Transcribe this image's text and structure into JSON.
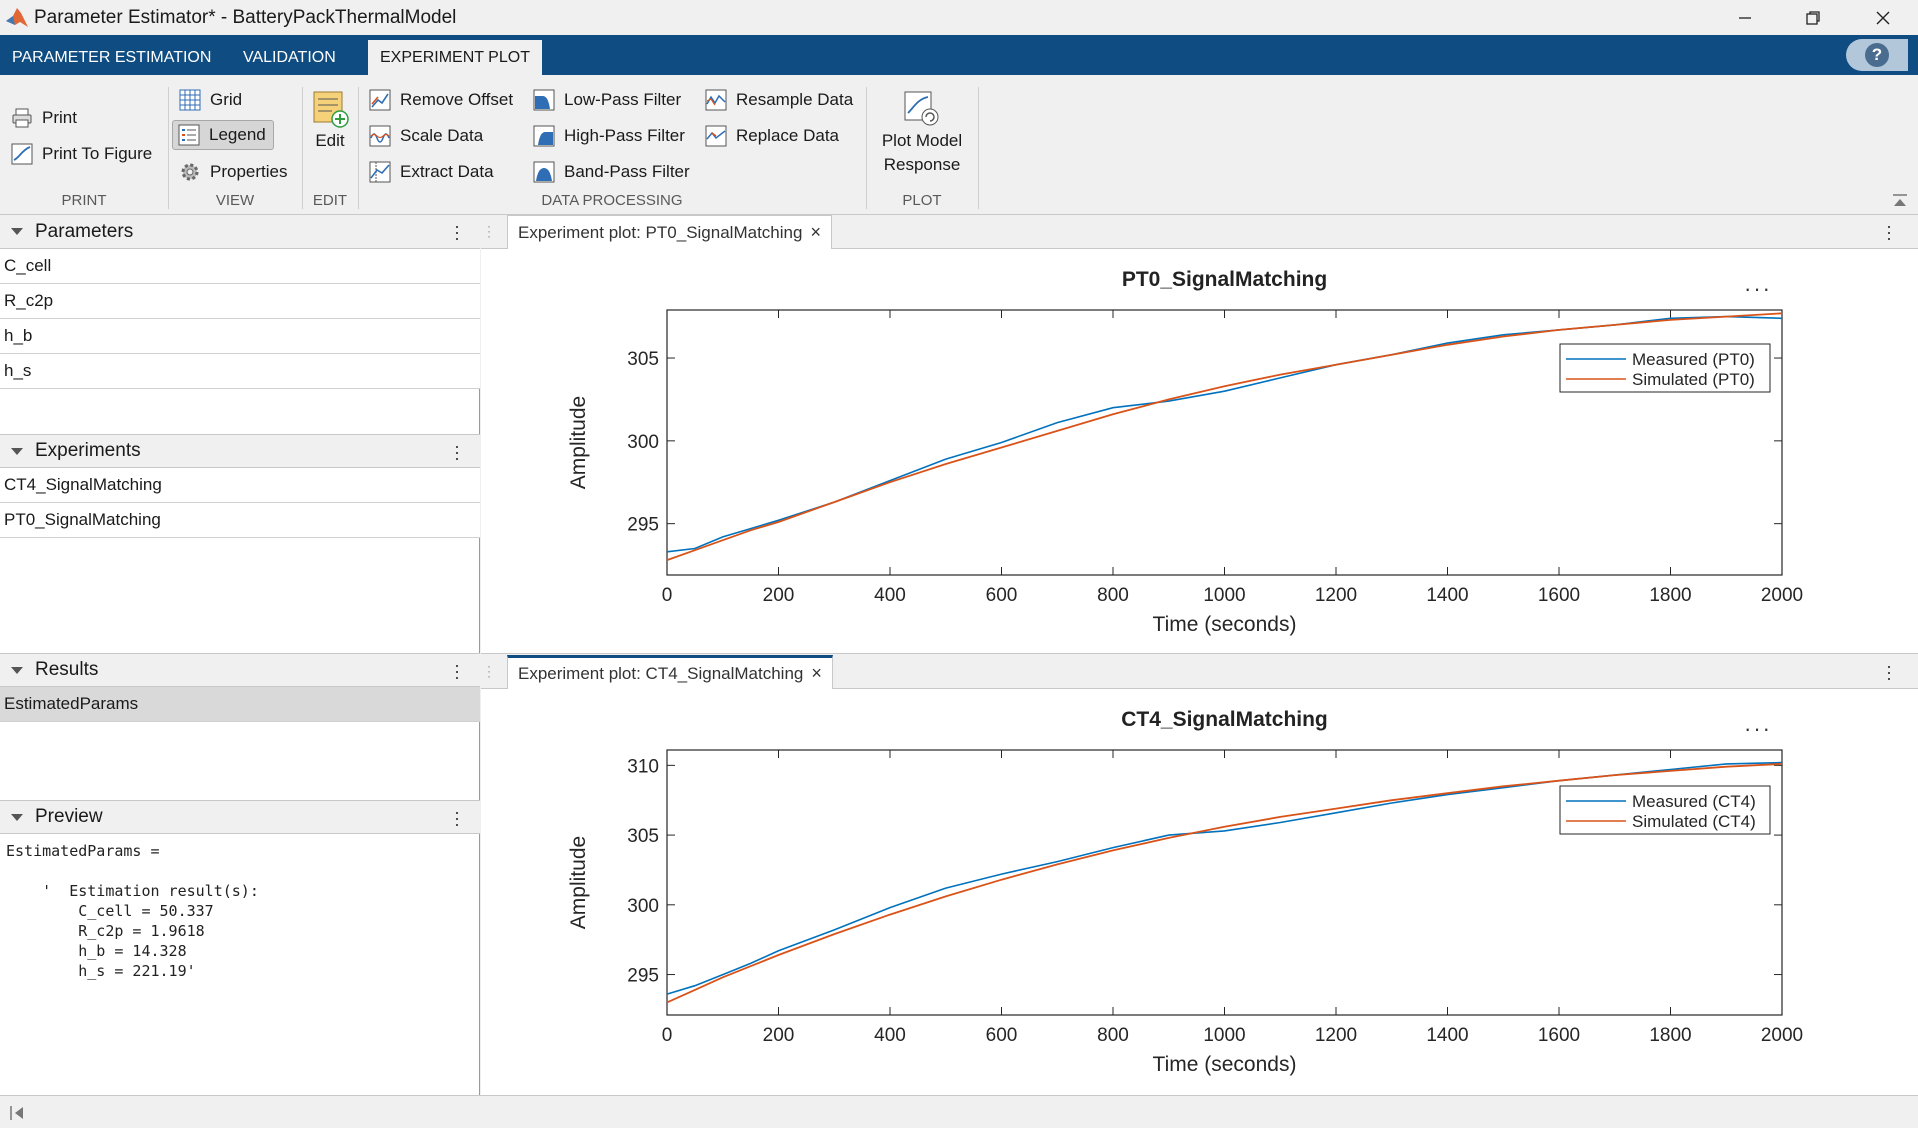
{
  "window": {
    "title": "Parameter Estimator* - BatteryPackThermalModel"
  },
  "tabs": [
    {
      "label": "PARAMETER ESTIMATION"
    },
    {
      "label": "VALIDATION"
    },
    {
      "label": "EXPERIMENT PLOT",
      "active": true
    }
  ],
  "toolstrip": {
    "print": {
      "print": "Print",
      "print_to_figure": "Print To Figure",
      "section": "PRINT"
    },
    "view": {
      "grid": "Grid",
      "legend": "Legend",
      "properties": "Properties",
      "section": "VIEW",
      "legend_toggled": true
    },
    "edit": {
      "edit": "Edit",
      "section": "EDIT"
    },
    "data_processing": {
      "remove_offset": "Remove Offset",
      "scale_data": "Scale Data",
      "extract_data": "Extract Data",
      "low_pass": "Low-Pass Filter",
      "high_pass": "High-Pass Filter",
      "band_pass": "Band-Pass Filter",
      "resample": "Resample Data",
      "replace": "Replace Data",
      "section": "DATA PROCESSING"
    },
    "plot": {
      "plot_model_response_1": "Plot Model",
      "plot_model_response_2": "Response",
      "section": "PLOT"
    }
  },
  "panels": {
    "parameters": {
      "title": "Parameters",
      "items": [
        "C_cell",
        "R_c2p",
        "h_b",
        "h_s"
      ]
    },
    "experiments": {
      "title": "Experiments",
      "items": [
        "CT4_SignalMatching",
        "PT0_SignalMatching"
      ]
    },
    "results": {
      "title": "Results",
      "items": [
        "EstimatedParams"
      ]
    },
    "preview": {
      "title": "Preview",
      "lines": [
        "EstimatedParams =",
        "",
        "    '  Estimation result(s):",
        "        C_cell = 50.337",
        "        R_c2p = 1.9618",
        "        h_b = 14.328",
        "        h_s = 221.19'"
      ]
    }
  },
  "documents": [
    {
      "tab": "Experiment plot: PT0_SignalMatching",
      "current": false
    },
    {
      "tab": "Experiment plot: CT4_SignalMatching",
      "current": true
    }
  ],
  "colors": {
    "measured": "#0072bd",
    "simulated": "#d95319",
    "accent": "#0f4c81"
  },
  "chart_data": [
    {
      "type": "line",
      "title": "PT0_SignalMatching",
      "xlabel": "Time (seconds)",
      "ylabel": "Amplitude",
      "xlim": [
        0,
        2000
      ],
      "ylim": [
        291.9,
        307.9
      ],
      "xticks": [
        0,
        200,
        400,
        600,
        800,
        1000,
        1200,
        1400,
        1600,
        1800,
        2000
      ],
      "yticks": [
        295,
        300,
        305
      ],
      "grid": false,
      "legend_position": "top-right",
      "series": [
        {
          "name": "Measured (PT0)",
          "x": [
            0,
            50,
            100,
            150,
            200,
            300,
            400,
            500,
            600,
            700,
            800,
            900,
            1000,
            1100,
            1200,
            1300,
            1400,
            1500,
            1600,
            1700,
            1800,
            1900,
            2000
          ],
          "y": [
            293.3,
            293.5,
            294.2,
            294.7,
            295.2,
            296.3,
            297.6,
            298.9,
            299.9,
            301.1,
            302.0,
            302.4,
            303.0,
            303.8,
            304.6,
            305.2,
            305.9,
            306.4,
            306.7,
            307.0,
            307.4,
            307.5,
            307.4
          ]
        },
        {
          "name": "Simulated (PT0)",
          "x": [
            0,
            50,
            100,
            150,
            200,
            300,
            400,
            500,
            600,
            700,
            800,
            900,
            1000,
            1100,
            1200,
            1300,
            1400,
            1500,
            1600,
            1700,
            1800,
            1900,
            2000
          ],
          "y": [
            292.8,
            293.4,
            294.0,
            294.6,
            295.1,
            296.3,
            297.5,
            298.6,
            299.6,
            300.6,
            301.6,
            302.5,
            303.3,
            304.0,
            304.6,
            305.2,
            305.8,
            306.3,
            306.7,
            307.0,
            307.3,
            307.5,
            307.7
          ]
        }
      ]
    },
    {
      "type": "line",
      "title": "CT4_SignalMatching",
      "xlabel": "Time (seconds)",
      "ylabel": "Amplitude",
      "xlim": [
        0,
        2000
      ],
      "ylim": [
        292.1,
        311.1
      ],
      "xticks": [
        0,
        200,
        400,
        600,
        800,
        1000,
        1200,
        1400,
        1600,
        1800,
        2000
      ],
      "yticks": [
        295,
        300,
        305,
        310
      ],
      "grid": false,
      "legend_position": "top-right",
      "series": [
        {
          "name": "Measured (CT4)",
          "x": [
            0,
            50,
            100,
            150,
            200,
            300,
            400,
            500,
            600,
            700,
            800,
            900,
            1000,
            1100,
            1200,
            1300,
            1400,
            1500,
            1600,
            1700,
            1800,
            1900,
            2000
          ],
          "y": [
            293.6,
            294.2,
            295.0,
            295.8,
            296.7,
            298.2,
            299.8,
            301.2,
            302.2,
            303.1,
            304.1,
            305.0,
            305.3,
            305.9,
            306.6,
            307.3,
            307.9,
            308.4,
            308.9,
            309.3,
            309.7,
            310.1,
            310.2
          ]
        },
        {
          "name": "Simulated (CT4)",
          "x": [
            0,
            50,
            100,
            150,
            200,
            300,
            400,
            500,
            600,
            700,
            800,
            900,
            1000,
            1100,
            1200,
            1300,
            1400,
            1500,
            1600,
            1700,
            1800,
            1900,
            2000
          ],
          "y": [
            293.0,
            293.9,
            294.8,
            295.6,
            296.4,
            297.9,
            299.3,
            300.6,
            301.8,
            302.9,
            303.9,
            304.8,
            305.6,
            306.3,
            306.9,
            307.5,
            308.0,
            308.5,
            308.9,
            309.3,
            309.6,
            309.9,
            310.1
          ]
        }
      ]
    }
  ]
}
